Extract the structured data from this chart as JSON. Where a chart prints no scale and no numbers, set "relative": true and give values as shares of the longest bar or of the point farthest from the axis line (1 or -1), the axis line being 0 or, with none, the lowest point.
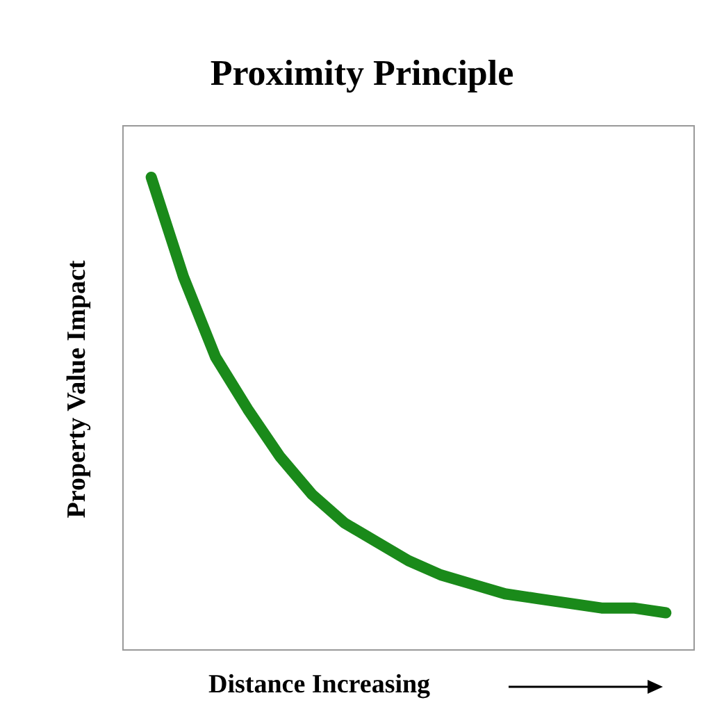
{
  "chart_data": {
    "type": "line",
    "title": "Proximity Principle",
    "xlabel": "Distance Increasing",
    "ylabel": "Property Value Impact",
    "relative": true,
    "categories": [
      null,
      null,
      null,
      null,
      null,
      null,
      null,
      null,
      null,
      null,
      null,
      null,
      null,
      null,
      null,
      null,
      null
    ],
    "series": [
      {
        "color": "#1a8a1a",
        "values": [
          1,
          0.79,
          0.62,
          0.51,
          0.41,
          0.33,
          0.27,
          0.23,
          0.19,
          0.16,
          0.14,
          0.12,
          0.11,
          0.1,
          0.09,
          0.09,
          0.08
        ]
      }
    ],
    "grid": false,
    "marker": "none",
    "line_style": "solid"
  }
}
